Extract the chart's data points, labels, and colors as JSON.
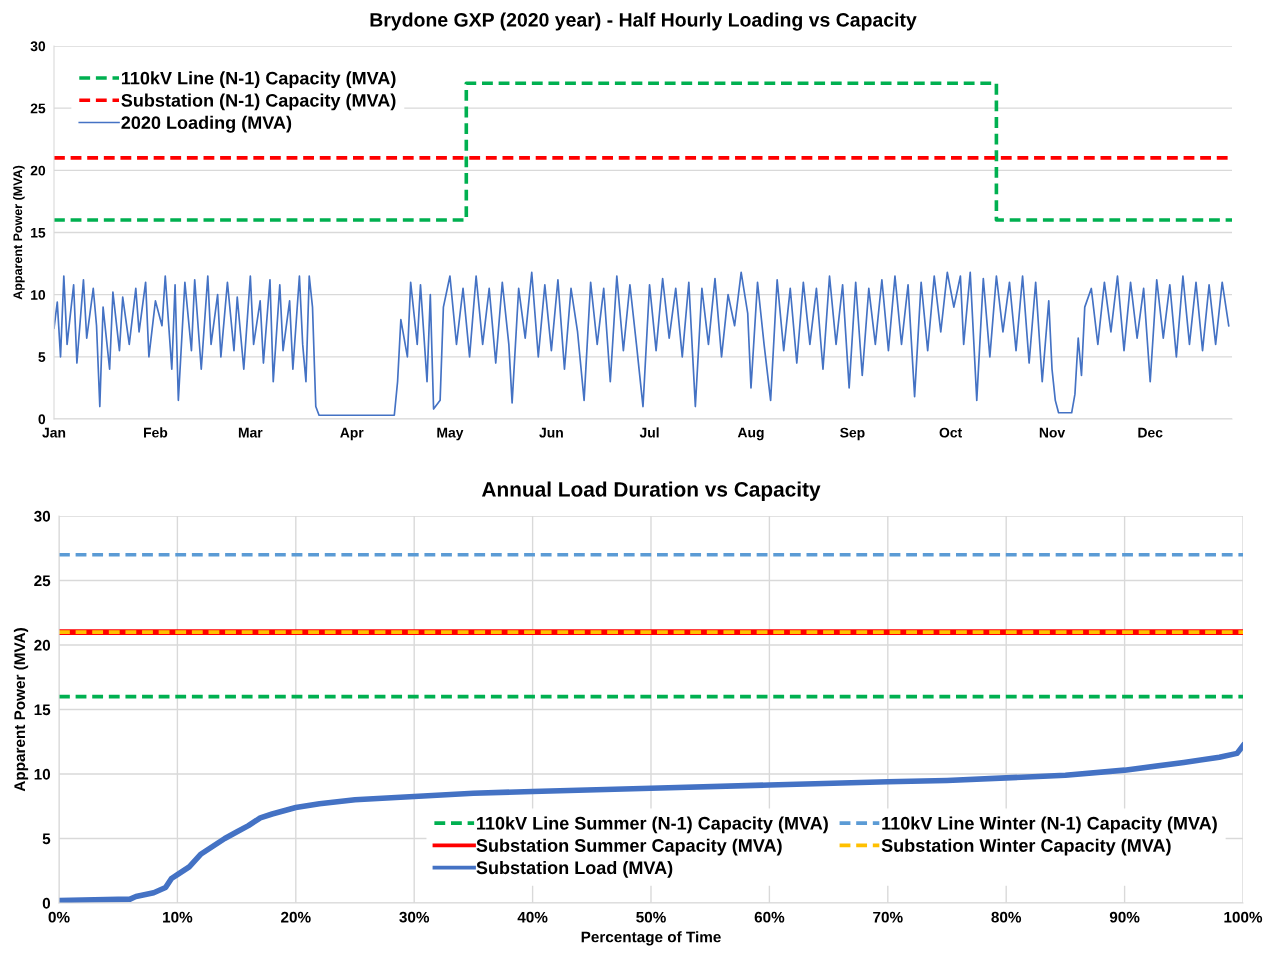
{
  "chart_data": [
    {
      "type": "line",
      "title": "Brydone GXP (2020 year) - Half Hourly Loading vs Capacity",
      "ylabel": "Apparent Power (MVA)",
      "xlim": [
        "2020-01-01",
        "2020-12-26"
      ],
      "xticks": [
        {
          "value": "2020-01-01",
          "label": "Jan"
        },
        {
          "value": "2020-02-01",
          "label": "Feb"
        },
        {
          "value": "2020-03-01",
          "label": "Mar"
        },
        {
          "value": "2020-04-01",
          "label": "Apr"
        },
        {
          "value": "2020-05-01",
          "label": "May"
        },
        {
          "value": "2020-06-01",
          "label": "Jun"
        },
        {
          "value": "2020-07-01",
          "label": "Jul"
        },
        {
          "value": "2020-08-01",
          "label": "Aug"
        },
        {
          "value": "2020-09-01",
          "label": "Sep"
        },
        {
          "value": "2020-10-01",
          "label": "Oct"
        },
        {
          "value": "2020-11-01",
          "label": "Nov"
        },
        {
          "value": "2020-12-01",
          "label": "Dec"
        }
      ],
      "ylim": [
        0,
        30
      ],
      "yticks": [
        0,
        5,
        10,
        15,
        20,
        25,
        30
      ],
      "grid": "y",
      "legend": "top left",
      "series": [
        {
          "name": "110kV Line (N-1) Capacity (MVA)",
          "type": "step",
          "color": "#00b050",
          "line_style": "dashed",
          "x": [
            "2020-01-01",
            "2020-05-06",
            "2020-10-15",
            "2020-12-26"
          ],
          "values": [
            16,
            27,
            16,
            16
          ]
        },
        {
          "name": "Substation (N-1) Capacity (MVA)",
          "type": "line",
          "color": "#ff0000",
          "line_style": "dashed",
          "x": [
            "2020-01-01",
            "2020-12-26"
          ],
          "values": [
            21,
            21
          ]
        },
        {
          "name": "2020 Loading (MVA)",
          "type": "line",
          "color": "#4472c4",
          "line_style": "solid",
          "x": [
            "2020-01-01",
            "2020-01-02",
            "2020-01-03",
            "2020-01-04",
            "2020-01-05",
            "2020-01-07",
            "2020-01-08",
            "2020-01-10",
            "2020-01-11",
            "2020-01-13",
            "2020-01-14",
            "2020-01-15",
            "2020-01-16",
            "2020-01-18",
            "2020-01-19",
            "2020-01-21",
            "2020-01-22",
            "2020-01-24",
            "2020-01-26",
            "2020-01-27",
            "2020-01-29",
            "2020-01-30",
            "2020-02-01",
            "2020-02-03",
            "2020-02-04",
            "2020-02-06",
            "2020-02-07",
            "2020-02-08",
            "2020-02-10",
            "2020-02-12",
            "2020-02-13",
            "2020-02-15",
            "2020-02-17",
            "2020-02-18",
            "2020-02-20",
            "2020-02-21",
            "2020-02-23",
            "2020-02-25",
            "2020-02-26",
            "2020-02-28",
            "2020-03-01",
            "2020-03-02",
            "2020-03-04",
            "2020-03-05",
            "2020-03-07",
            "2020-03-08",
            "2020-03-10",
            "2020-03-11",
            "2020-03-13",
            "2020-03-14",
            "2020-03-16",
            "2020-03-17",
            "2020-03-18",
            "2020-03-19",
            "2020-03-20",
            "2020-03-21",
            "2020-03-22",
            "2020-04-14",
            "2020-04-15",
            "2020-04-16",
            "2020-04-18",
            "2020-04-19",
            "2020-04-21",
            "2020-04-22",
            "2020-04-24",
            "2020-04-25",
            "2020-04-26",
            "2020-04-28",
            "2020-04-29",
            "2020-05-01",
            "2020-05-03",
            "2020-05-05",
            "2020-05-07",
            "2020-05-09",
            "2020-05-11",
            "2020-05-13",
            "2020-05-15",
            "2020-05-17",
            "2020-05-19",
            "2020-05-20",
            "2020-05-22",
            "2020-05-24",
            "2020-05-26",
            "2020-05-28",
            "2020-05-30",
            "2020-06-01",
            "2020-06-03",
            "2020-06-05",
            "2020-06-07",
            "2020-06-09",
            "2020-06-11",
            "2020-06-13",
            "2020-06-15",
            "2020-06-17",
            "2020-06-19",
            "2020-06-21",
            "2020-06-23",
            "2020-06-25",
            "2020-06-27",
            "2020-06-29",
            "2020-07-01",
            "2020-07-03",
            "2020-07-05",
            "2020-07-07",
            "2020-07-09",
            "2020-07-11",
            "2020-07-13",
            "2020-07-15",
            "2020-07-17",
            "2020-07-19",
            "2020-07-21",
            "2020-07-23",
            "2020-07-25",
            "2020-07-27",
            "2020-07-29",
            "2020-07-31",
            "2020-08-01",
            "2020-08-03",
            "2020-08-05",
            "2020-08-07",
            "2020-08-09",
            "2020-08-11",
            "2020-08-13",
            "2020-08-15",
            "2020-08-17",
            "2020-08-19",
            "2020-08-21",
            "2020-08-23",
            "2020-08-25",
            "2020-08-27",
            "2020-08-29",
            "2020-08-31",
            "2020-09-02",
            "2020-09-04",
            "2020-09-06",
            "2020-09-08",
            "2020-09-10",
            "2020-09-12",
            "2020-09-14",
            "2020-09-16",
            "2020-09-18",
            "2020-09-20",
            "2020-09-22",
            "2020-09-24",
            "2020-09-26",
            "2020-09-28",
            "2020-09-30",
            "2020-10-02",
            "2020-10-04",
            "2020-10-05",
            "2020-10-07",
            "2020-10-09",
            "2020-10-11",
            "2020-10-13",
            "2020-10-15",
            "2020-10-17",
            "2020-10-19",
            "2020-10-21",
            "2020-10-23",
            "2020-10-25",
            "2020-10-27",
            "2020-10-29",
            "2020-10-31",
            "2020-11-01",
            "2020-11-02",
            "2020-11-03",
            "2020-11-07",
            "2020-11-08",
            "2020-11-09",
            "2020-11-10",
            "2020-11-11",
            "2020-11-13",
            "2020-11-15",
            "2020-11-17",
            "2020-11-19",
            "2020-11-21",
            "2020-11-23",
            "2020-11-25",
            "2020-11-27",
            "2020-11-29",
            "2020-12-01",
            "2020-12-03",
            "2020-12-05",
            "2020-12-07",
            "2020-12-09",
            "2020-12-11",
            "2020-12-13",
            "2020-12-15",
            "2020-12-17",
            "2020-12-19",
            "2020-12-21",
            "2020-12-23",
            "2020-12-25"
          ],
          "values": [
            7.3,
            9.4,
            5.0,
            11.5,
            6.0,
            10.8,
            4.5,
            11.2,
            6.5,
            10.5,
            7.5,
            1.0,
            9.0,
            4.0,
            10.2,
            5.5,
            9.8,
            6.0,
            10.5,
            7.0,
            11.0,
            5.0,
            9.5,
            7.5,
            11.5,
            4.0,
            10.8,
            1.5,
            11.0,
            5.5,
            11.2,
            4.0,
            11.5,
            6.0,
            10.0,
            5.0,
            11.0,
            5.5,
            9.8,
            4.0,
            11.5,
            6.0,
            9.5,
            4.5,
            11.2,
            3.0,
            10.8,
            5.5,
            9.5,
            4.0,
            11.5,
            6.0,
            3.0,
            11.5,
            9.0,
            1.0,
            0.3,
            0.3,
            3.0,
            8.0,
            5.0,
            11.0,
            6.0,
            10.8,
            3.0,
            10.0,
            0.8,
            1.5,
            9.0,
            11.5,
            6.0,
            10.5,
            5.0,
            11.5,
            6.0,
            10.5,
            4.5,
            11.0,
            6.0,
            1.3,
            10.5,
            6.5,
            11.8,
            5.0,
            10.8,
            5.5,
            11.2,
            4.0,
            10.5,
            7.0,
            1.5,
            11.0,
            6.0,
            10.5,
            3.0,
            11.5,
            5.5,
            10.8,
            6.0,
            1.0,
            10.8,
            5.5,
            11.3,
            6.5,
            10.5,
            5.0,
            11.0,
            1.0,
            10.5,
            6.0,
            11.3,
            5.0,
            10.0,
            7.5,
            11.8,
            8.5,
            2.5,
            11.0,
            6.0,
            1.5,
            11.2,
            5.5,
            10.5,
            4.5,
            11.0,
            6.0,
            10.5,
            4.0,
            11.5,
            6.0,
            10.8,
            2.5,
            11.0,
            3.5,
            10.5,
            6.0,
            11.2,
            5.5,
            11.5,
            6.0,
            10.8,
            1.8,
            11.0,
            5.5,
            11.5,
            7.0,
            11.8,
            9.0,
            11.5,
            6.0,
            11.8,
            1.5,
            11.3,
            5.0,
            11.5,
            7.0,
            11.0,
            5.5,
            11.5,
            4.5,
            11.0,
            3.0,
            9.5,
            4.0,
            1.5,
            0.5,
            0.5,
            2.0,
            6.5,
            3.5,
            9.0,
            10.5,
            6.0,
            11.0,
            7.0,
            11.5,
            5.5,
            11.0,
            6.5,
            10.5,
            3.0,
            11.2,
            6.5,
            10.8,
            5.0,
            11.5,
            6.0,
            11.0,
            5.5,
            10.8,
            6.0,
            11.0,
            7.5
          ]
        }
      ]
    },
    {
      "type": "line",
      "title": "Annual Load Duration vs Capacity",
      "xlabel": "Percentage of Time",
      "ylabel": "Apparent Power (MVA)",
      "xlim": [
        0,
        100
      ],
      "xticks": [
        {
          "value": 0,
          "label": "0%"
        },
        {
          "value": 10,
          "label": "10%"
        },
        {
          "value": 20,
          "label": "20%"
        },
        {
          "value": 30,
          "label": "30%"
        },
        {
          "value": 40,
          "label": "40%"
        },
        {
          "value": 50,
          "label": "50%"
        },
        {
          "value": 60,
          "label": "60%"
        },
        {
          "value": 70,
          "label": "70%"
        },
        {
          "value": 80,
          "label": "80%"
        },
        {
          "value": 90,
          "label": "90%"
        },
        {
          "value": 100,
          "label": "100%"
        }
      ],
      "ylim": [
        0,
        30
      ],
      "yticks": [
        0,
        5,
        10,
        15,
        20,
        25,
        30
      ],
      "grid": true,
      "legend": "bottom right",
      "series": [
        {
          "name": "110kV Line Summer (N-1) Capacity (MVA)",
          "color": "#00b050",
          "line_style": "dashed",
          "x": [
            0,
            100
          ],
          "values": [
            16,
            16
          ]
        },
        {
          "name": "110kV Line Winter (N-1) Capacity (MVA)",
          "color": "#5b9bd5",
          "line_style": "dashed",
          "x": [
            0,
            100
          ],
          "values": [
            27,
            27
          ]
        },
        {
          "name": "Substation Summer Capacity (MVA)",
          "color": "#ff0000",
          "line_style": "solid",
          "x": [
            0,
            100
          ],
          "values": [
            21,
            21
          ]
        },
        {
          "name": "Substation Winter Capacity (MVA)",
          "color": "#ffc000",
          "line_style": "dashed",
          "x": [
            0,
            100
          ],
          "values": [
            21,
            21
          ]
        },
        {
          "name": "Substation Load (MVA)",
          "color": "#4472c4",
          "line_style": "solid",
          "x": [
            0,
            3,
            6,
            6.5,
            8,
            9,
            9.5,
            10,
            11,
            12,
            13,
            14,
            15,
            16,
            17,
            18,
            20,
            22,
            25,
            30,
            35,
            40,
            50,
            60,
            70,
            75,
            80,
            85,
            90,
            95,
            98,
            99.5,
            100
          ],
          "values": [
            0.2,
            0.25,
            0.3,
            0.5,
            0.8,
            1.2,
            1.9,
            2.2,
            2.8,
            3.8,
            4.4,
            5.0,
            5.5,
            6.0,
            6.6,
            6.9,
            7.4,
            7.7,
            8.0,
            8.25,
            8.5,
            8.65,
            8.9,
            9.15,
            9.4,
            9.5,
            9.7,
            9.9,
            10.3,
            10.9,
            11.3,
            11.6,
            12.2
          ]
        }
      ]
    }
  ]
}
